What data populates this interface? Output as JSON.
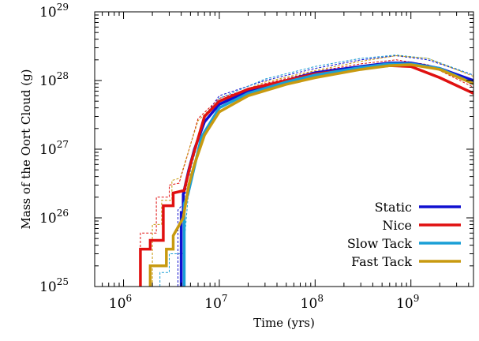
{
  "chart_data": {
    "type": "line",
    "title": "",
    "xlabel": "Time (yrs)",
    "ylabel": "Mass of the Oort Cloud (g)",
    "x_scale": "log",
    "y_scale": "log",
    "xlim": [
      500000,
      4500000000
    ],
    "ylim": [
      1e+25,
      1e+29
    ],
    "x_ticks": [
      {
        "value": 1000000,
        "base": "10",
        "exp": "6"
      },
      {
        "value": 10000000,
        "base": "10",
        "exp": "7"
      },
      {
        "value": 100000000,
        "base": "10",
        "exp": "8"
      },
      {
        "value": 1000000000,
        "base": "10",
        "exp": "9"
      }
    ],
    "y_ticks": [
      {
        "value": 1e+25,
        "base": "10",
        "exp": "25"
      },
      {
        "value": 1e+26,
        "base": "10",
        "exp": "26"
      },
      {
        "value": 1e+27,
        "base": "10",
        "exp": "27"
      },
      {
        "value": 1e+28,
        "base": "10",
        "exp": "28"
      },
      {
        "value": 1e+29,
        "base": "10",
        "exp": "29"
      }
    ],
    "grid": false,
    "legend_position": "bottom-right",
    "series": [
      {
        "name": "Static",
        "color": "#1010d0",
        "x": [
          4000000,
          4000000,
          4200000,
          4200000,
          4800000,
          5500000,
          7000000,
          10000000,
          20000000,
          50000000,
          100000000,
          300000000,
          600000000,
          1000000000,
          2000000000,
          4500000000
        ],
        "y": [
          1e+25,
          1.2e+26,
          1.2e+26,
          2.2e+26,
          5e+26,
          1e+27,
          2.5e+27,
          4.5e+27,
          7e+27,
          1e+28,
          1.3e+28,
          1.6e+28,
          1.8e+28,
          1.8e+28,
          1.5e+28,
          1e+28
        ],
        "dashed": {
          "x": [
            3700000,
            3700000,
            4200000,
            5000000,
            7000000,
            10000000,
            30000000,
            100000000,
            300000000,
            700000000,
            1500000000,
            4500000000
          ],
          "y": [
            1e+25,
            1.3e+26,
            1.6e+26,
            6e+26,
            3e+27,
            6e+27,
            1e+28,
            1.5e+28,
            2e+28,
            2.3e+28,
            2e+28,
            1.2e+28
          ]
        }
      },
      {
        "name": "Nice",
        "color": "#e01010",
        "x": [
          1500000,
          1500000,
          1900000,
          1900000,
          2600000,
          2600000,
          3300000,
          3300000,
          4300000,
          5000000,
          7000000,
          10000000,
          20000000,
          50000000,
          100000000,
          300000000,
          600000000,
          1000000000,
          2000000000,
          4500000000
        ],
        "y": [
          1e+25,
          3.5e+25,
          3.5e+25,
          4.7e+25,
          4.7e+25,
          1.5e+26,
          1.5e+26,
          2.3e+26,
          2.5e+26,
          6e+26,
          3e+27,
          5e+27,
          7.5e+27,
          1e+28,
          1.25e+28,
          1.5e+28,
          1.65e+28,
          1.6e+28,
          1.1e+28,
          6.5e+27
        ],
        "dashed": {
          "x": [
            1500000,
            1500000,
            2200000,
            2200000,
            3000000,
            3000000,
            3800000,
            4500000,
            6000000,
            10000000,
            30000000,
            100000000,
            300000000,
            700000000,
            1500000000,
            4500000000
          ],
          "y": [
            1e+25,
            6e+25,
            6e+25,
            2e+26,
            2e+26,
            3e+26,
            3.2e+26,
            7e+26,
            2.8e+27,
            5.5e+27,
            9e+27,
            1.35e+28,
            1.75e+28,
            2e+28,
            1.7e+28,
            8e+27
          ]
        }
      },
      {
        "name": "Slow Tack",
        "color": "#1a9fd6",
        "x": [
          4300000,
          4300000,
          4700000,
          5200000,
          6500000,
          10000000,
          20000000,
          50000000,
          100000000,
          300000000,
          600000000,
          1000000000,
          2000000000,
          4500000000
        ],
        "y": [
          1e+25,
          1.6e+26,
          2.2e+26,
          4e+26,
          1.5e+27,
          4e+27,
          6.5e+27,
          9.5e+27,
          1.2e+28,
          1.55e+28,
          1.75e+28,
          1.75e+28,
          1.5e+28,
          9e+27
        ],
        "dashed": {
          "x": [
            2400000,
            2400000,
            3000000,
            3000000,
            4200000,
            5000000,
            7000000,
            10000000,
            30000000,
            100000000,
            300000000,
            700000000,
            1500000000,
            4500000000
          ],
          "y": [
            1e+25,
            1.6e+25,
            1.6e+25,
            3e+25,
            3e+25,
            5e+26,
            2.8e+27,
            5.5e+27,
            1.05e+28,
            1.6e+28,
            2.1e+28,
            2.35e+28,
            2.1e+28,
            1.2e+28
          ]
        }
      },
      {
        "name": "Fast Tack",
        "color": "#c89a10",
        "x": [
          1900000,
          1900000,
          2800000,
          2800000,
          3300000,
          3300000,
          4200000,
          4800000,
          5500000,
          7000000,
          10000000,
          20000000,
          50000000,
          100000000,
          300000000,
          600000000,
          1000000000,
          2000000000,
          4500000000
        ],
        "y": [
          1e+25,
          2e+25,
          2e+25,
          3.5e+25,
          3.5e+25,
          5.5e+25,
          1e+26,
          3e+26,
          6e+26,
          1.6e+27,
          3.5e+27,
          6e+27,
          8.8e+27,
          1.1e+28,
          1.45e+28,
          1.65e+28,
          1.7e+28,
          1.45e+28,
          9e+27
        ],
        "dashed": {
          "x": [
            2000000,
            2000000,
            2500000,
            2500000,
            3200000,
            3200000,
            3900000,
            4600000,
            6000000,
            10000000,
            30000000,
            100000000,
            300000000,
            700000000,
            1500000000,
            4500000000
          ],
          "y": [
            1e+25,
            8e+25,
            8e+25,
            1.8e+26,
            1.8e+26,
            3.5e+26,
            3.8e+26,
            8e+26,
            2.6e+27,
            5.2e+27,
            9.5e+27,
            1.4e+28,
            1.9e+28,
            2.3e+28,
            2.1e+28,
            1.15e+28
          ]
        }
      }
    ]
  }
}
